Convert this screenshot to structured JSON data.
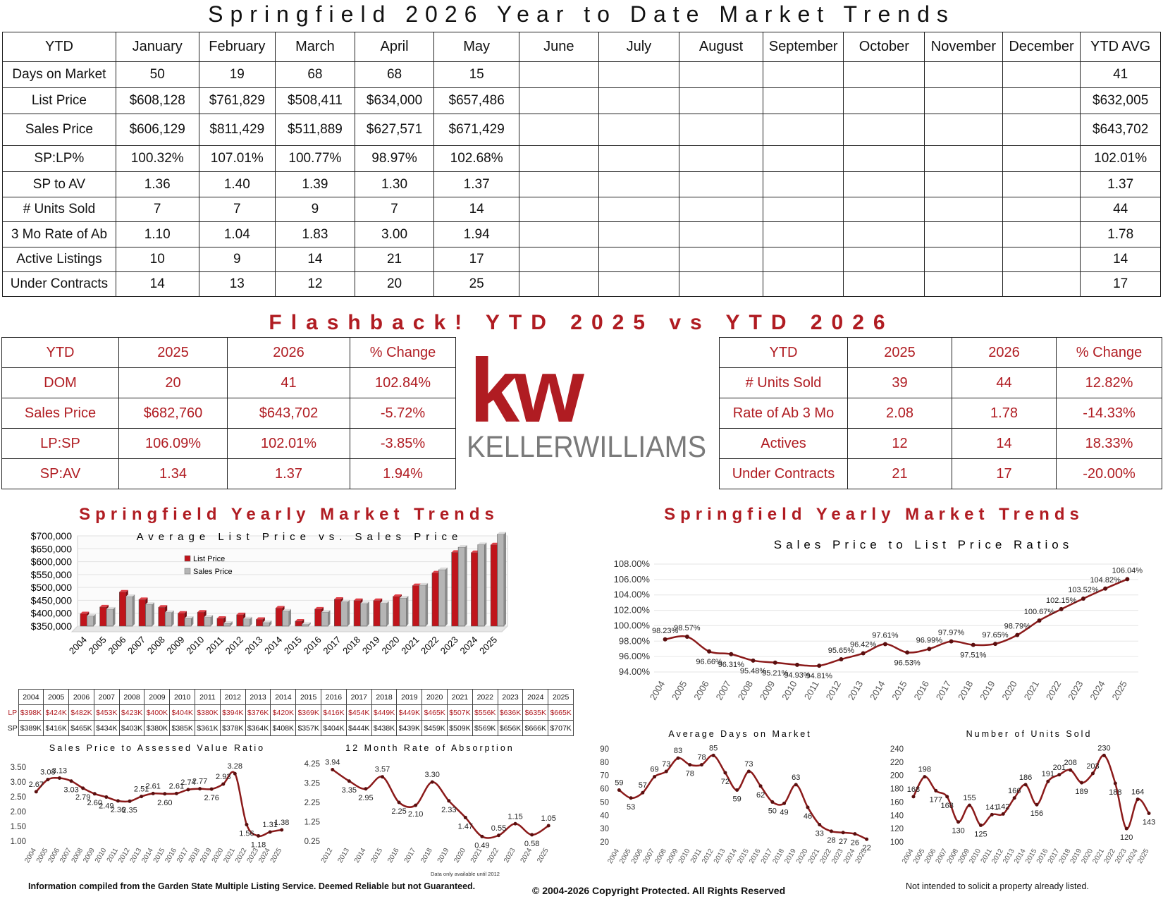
{
  "title": "Springfield 2026 Year to Date Market Trends",
  "ytd_table": {
    "headers": [
      "YTD",
      "January",
      "February",
      "March",
      "April",
      "May",
      "June",
      "July",
      "August",
      "September",
      "October",
      "November",
      "December",
      "YTD AVG"
    ],
    "rows": [
      {
        "label": "Days on Market",
        "values": [
          "50",
          "19",
          "68",
          "68",
          "15",
          "",
          "",
          "",
          "",
          "",
          "",
          "",
          "41"
        ]
      },
      {
        "label": "List Price",
        "values": [
          "$608,128",
          "$761,829",
          "$508,411",
          "$634,000",
          "$657,486",
          "",
          "",
          "",
          "",
          "",
          "",
          "",
          "$632,005"
        ]
      },
      {
        "label": "Sales Price",
        "values": [
          "$606,129",
          "$811,429",
          "$511,889",
          "$627,571",
          "$671,429",
          "",
          "",
          "",
          "",
          "",
          "",
          "",
          "$643,702"
        ]
      },
      {
        "label": "SP:LP%",
        "values": [
          "100.32%",
          "107.01%",
          "100.77%",
          "98.97%",
          "102.68%",
          "",
          "",
          "",
          "",
          "",
          "",
          "",
          "102.01%"
        ]
      },
      {
        "label": "SP to AV",
        "values": [
          "1.36",
          "1.40",
          "1.39",
          "1.30",
          "1.37",
          "",
          "",
          "",
          "",
          "",
          "",
          "",
          "1.37"
        ]
      },
      {
        "label": "# Units Sold",
        "values": [
          "7",
          "7",
          "9",
          "7",
          "14",
          "",
          "",
          "",
          "",
          "",
          "",
          "",
          "44"
        ]
      },
      {
        "label": "3 Mo Rate of Ab",
        "values": [
          "1.10",
          "1.04",
          "1.83",
          "3.00",
          "1.94",
          "",
          "",
          "",
          "",
          "",
          "",
          "",
          "1.78"
        ]
      },
      {
        "label": "Active Listings",
        "values": [
          "10",
          "9",
          "14",
          "21",
          "17",
          "",
          "",
          "",
          "",
          "",
          "",
          "",
          "14"
        ]
      },
      {
        "label": "Under Contracts",
        "values": [
          "14",
          "13",
          "12",
          "20",
          "25",
          "",
          "",
          "",
          "",
          "",
          "",
          "",
          "17"
        ]
      }
    ]
  },
  "flashback_title": "Flashback!  YTD 2025 vs YTD 2026",
  "flashback_left": {
    "headers": [
      "YTD",
      "2025",
      "2026",
      "% Change"
    ],
    "rows": [
      [
        "DOM",
        "20",
        "41",
        "102.84%"
      ],
      [
        "Sales Price",
        "$682,760",
        "$643,702",
        "-5.72%"
      ],
      [
        "LP:SP",
        "106.09%",
        "102.01%",
        "-3.85%"
      ],
      [
        "SP:AV",
        "1.34",
        "1.37",
        "1.94%"
      ]
    ]
  },
  "flashback_right": {
    "headers": [
      "YTD",
      "2025",
      "2026",
      "% Change"
    ],
    "rows": [
      [
        "# Units Sold",
        "39",
        "44",
        "12.82%"
      ],
      [
        "Rate of Ab 3 Mo",
        "2.08",
        "1.78",
        "-14.33%"
      ],
      [
        "Actives",
        "12",
        "14",
        "18.33%"
      ],
      [
        "Under Contracts",
        "21",
        "17",
        "-20.00%"
      ]
    ]
  },
  "logo": {
    "mark": "kw",
    "name": "KELLERWILLIAMS",
    "colors": {
      "red": "#b01c22",
      "gray": "#7a7a7a"
    }
  },
  "section_title_left": "Springfield Yearly Market Trends",
  "section_title_right": "Springfield Yearly Market Trends",
  "lp_sp_table": {
    "years": [
      "2004",
      "2005",
      "2006",
      "2007",
      "2008",
      "2009",
      "2010",
      "2011",
      "2012",
      "2013",
      "2014",
      "2015",
      "2016",
      "2017",
      "2018",
      "2019",
      "2020",
      "2021",
      "2022",
      "2023",
      "2024",
      "2025"
    ],
    "lp_label": "LP",
    "sp_label": "SP",
    "lp": [
      "$398K",
      "$424K",
      "$482K",
      "$453K",
      "$423K",
      "$400K",
      "$404K",
      "$380K",
      "$394K",
      "$376K",
      "$420K",
      "$369K",
      "$416K",
      "$454K",
      "$449K",
      "$449K",
      "$465K",
      "$507K",
      "$556K",
      "$636K",
      "$635K",
      "$665K"
    ],
    "sp": [
      "$389K",
      "$416K",
      "$465K",
      "$434K",
      "$403K",
      "$380K",
      "$385K",
      "$361K",
      "$378K",
      "$364K",
      "$408K",
      "$357K",
      "$404K",
      "$444K",
      "$438K",
      "$439K",
      "$459K",
      "$509K",
      "$569K",
      "$656K",
      "$666K",
      "$707K"
    ]
  },
  "footer": {
    "left": "Information compiled from the Garden State Multiple Listing Service.  Deemed Reliable but not Guaranteed.",
    "center": "© 2004-2026 Copyright Protected.  All Rights Reserved",
    "right": "Not intended to solicit a property already listed."
  },
  "colors": {
    "accent": "#b01c22",
    "line": "#8b1a1a",
    "bar_gray": "#b5b5b5"
  },
  "chart_data": [
    {
      "id": "avg-list-vs-sales",
      "type": "bar",
      "title": "Average List Price vs. Sales Price",
      "categories": [
        "2004",
        "2005",
        "2006",
        "2007",
        "2008",
        "2009",
        "2010",
        "2011",
        "2012",
        "2013",
        "2014",
        "2015",
        "2016",
        "2017",
        "2018",
        "2019",
        "2020",
        "2021",
        "2022",
        "2023",
        "2024",
        "2025"
      ],
      "series": [
        {
          "name": "List Price",
          "color": "#c0141b",
          "values": [
            398,
            424,
            482,
            453,
            423,
            400,
            404,
            380,
            394,
            376,
            420,
            369,
            416,
            454,
            449,
            449,
            465,
            507,
            556,
            636,
            635,
            665
          ]
        },
        {
          "name": "Sales Price",
          "color": "#b5b5b5",
          "values": [
            389,
            416,
            465,
            434,
            403,
            380,
            385,
            361,
            378,
            364,
            408,
            357,
            404,
            444,
            438,
            439,
            459,
            509,
            569,
            656,
            666,
            707
          ]
        }
      ],
      "value_unit": "thousands of dollars",
      "ylim": [
        350000,
        700000
      ],
      "yticks": [
        "$350,000",
        "$400,000",
        "$450,000",
        "$500,000",
        "$550,000",
        "$600,000",
        "$650,000",
        "$700,000"
      ],
      "legend": "upper-left"
    },
    {
      "id": "sp-lp-ratio",
      "type": "line",
      "title": "Sales Price to List Price Ratios",
      "x": [
        "2004",
        "2005",
        "2006",
        "2007",
        "2008",
        "2009",
        "2010",
        "2011",
        "2012",
        "2013",
        "2014",
        "2015",
        "2016",
        "2017",
        "2018",
        "2019",
        "2020",
        "2021",
        "2022",
        "2023",
        "2024",
        "2025"
      ],
      "values": [
        98.23,
        98.57,
        96.66,
        96.31,
        95.48,
        95.21,
        94.93,
        94.81,
        95.65,
        96.42,
        97.61,
        96.53,
        96.99,
        97.97,
        97.51,
        97.65,
        98.79,
        100.67,
        102.15,
        103.52,
        104.82,
        106.04
      ],
      "labels": [
        "98.23%",
        "98.57%",
        "96.66%",
        "96.31%",
        "95.48%",
        "95.21%",
        "94.93%",
        "94.81%",
        "95.65%",
        "96.42%",
        "97.61%",
        "96.53%",
        "96.99%",
        "97.97%",
        "97.51%",
        "97.65%",
        "98.79%",
        "100.67%",
        "102.15%",
        "103.52%",
        "104.82%",
        "106.04%"
      ],
      "ylim": [
        94,
        108
      ],
      "yticks": [
        "94.00%",
        "96.00%",
        "98.00%",
        "100.00%",
        "102.00%",
        "104.00%",
        "106.00%",
        "108.00%"
      ]
    },
    {
      "id": "sp-av-ratio",
      "type": "line",
      "title": "Sales Price to Assessed Value Ratio",
      "x": [
        "2004",
        "2005",
        "2006",
        "2007",
        "2008",
        "2009",
        "2010",
        "2011",
        "2012",
        "2013",
        "2014",
        "2015",
        "2016",
        "2017",
        "2018",
        "2019",
        "2020",
        "2021",
        "2022",
        "2023",
        "2024",
        "2025"
      ],
      "values": [
        2.67,
        3.08,
        3.13,
        3.03,
        2.79,
        2.6,
        2.49,
        2.36,
        2.35,
        2.51,
        2.61,
        2.6,
        2.61,
        2.74,
        2.77,
        2.76,
        2.93,
        3.28,
        1.56,
        1.18,
        1.31,
        1.38
      ],
      "labels": [
        "2.67",
        "3.08",
        "3.13",
        "3.03",
        "2.79",
        "2.60",
        "2.49",
        "2.36",
        "2.35",
        "2.51",
        "2.61",
        "2.60",
        "2.61",
        "2.74",
        "2.77",
        "2.76",
        "2.93",
        "3.28",
        "1.56",
        "1.18",
        "1.31",
        "1.38"
      ],
      "ylim": [
        1.0,
        3.5
      ],
      "yticks": [
        "1.00",
        "1.50",
        "2.00",
        "2.50",
        "3.00",
        "3.50"
      ]
    },
    {
      "id": "absorption",
      "type": "line",
      "title": "12 Month Rate of Absorption",
      "note": "Data only available until 2012",
      "x": [
        "2012",
        "2013",
        "2014",
        "2015",
        "2016",
        "2017",
        "2018",
        "2019",
        "2020",
        "2021",
        "2022",
        "2023",
        "2024",
        "2025"
      ],
      "values": [
        3.94,
        3.35,
        2.95,
        3.57,
        2.25,
        2.1,
        3.3,
        2.33,
        1.47,
        0.49,
        0.55,
        1.15,
        0.58,
        1.05
      ],
      "labels": [
        "3.94",
        "3.35",
        "2.95",
        "3.57",
        "2.25",
        "2.10",
        "3.30",
        "2.33",
        "1.47",
        "0.49",
        "0.55",
        "1.15",
        "0.58",
        "1.05"
      ],
      "ylim": [
        0.25,
        4.25
      ],
      "yticks": [
        "0.25",
        "1.25",
        "2.25",
        "3.25",
        "4.25"
      ]
    },
    {
      "id": "avg-dom",
      "type": "line",
      "title": "Average Days on Market",
      "x": [
        "2004",
        "2005",
        "2006",
        "2007",
        "2008",
        "2009",
        "2010",
        "2011",
        "2012",
        "2013",
        "2014",
        "2015",
        "2016",
        "2017",
        "2018",
        "2019",
        "2020",
        "2021",
        "2022",
        "2023",
        "2024",
        "2025"
      ],
      "values": [
        59,
        53,
        57,
        69,
        73,
        83,
        78,
        78,
        85,
        72,
        59,
        73,
        62,
        50,
        49,
        63,
        46,
        33,
        28,
        27,
        26,
        22
      ],
      "labels": [
        "59",
        "53",
        "57",
        "69",
        "73",
        "83",
        "78",
        "78",
        "85",
        "72",
        "59",
        "73",
        "62",
        "50",
        "49",
        "63",
        "46",
        "33",
        "28",
        "27",
        "26",
        "22"
      ],
      "ylim": [
        20,
        90
      ],
      "yticks": [
        "20",
        "30",
        "40",
        "50",
        "60",
        "70",
        "80",
        "90"
      ]
    },
    {
      "id": "units-sold",
      "type": "line",
      "title": "Number of Units Sold",
      "x": [
        "2004",
        "2005",
        "2006",
        "2007",
        "2008",
        "2009",
        "2010",
        "2011",
        "2012",
        "2013",
        "2014",
        "2015",
        "2016",
        "2017",
        "2018",
        "2019",
        "2020",
        "2021",
        "2022",
        "2023",
        "2024",
        "2025"
      ],
      "values": [
        168,
        198,
        177,
        168,
        130,
        155,
        125,
        141,
        142,
        166,
        186,
        156,
        191,
        201,
        208,
        189,
        203,
        230,
        188,
        120,
        164,
        143
      ],
      "labels": [
        "168",
        "198",
        "177",
        "168",
        "130",
        "155",
        "125",
        "141",
        "142",
        "166",
        "186",
        "156",
        "191",
        "201",
        "208",
        "189",
        "203",
        "230",
        "188",
        "120",
        "164",
        "143"
      ],
      "ylim": [
        100,
        240
      ],
      "yticks": [
        "100",
        "120",
        "140",
        "160",
        "180",
        "200",
        "220",
        "240"
      ]
    }
  ]
}
